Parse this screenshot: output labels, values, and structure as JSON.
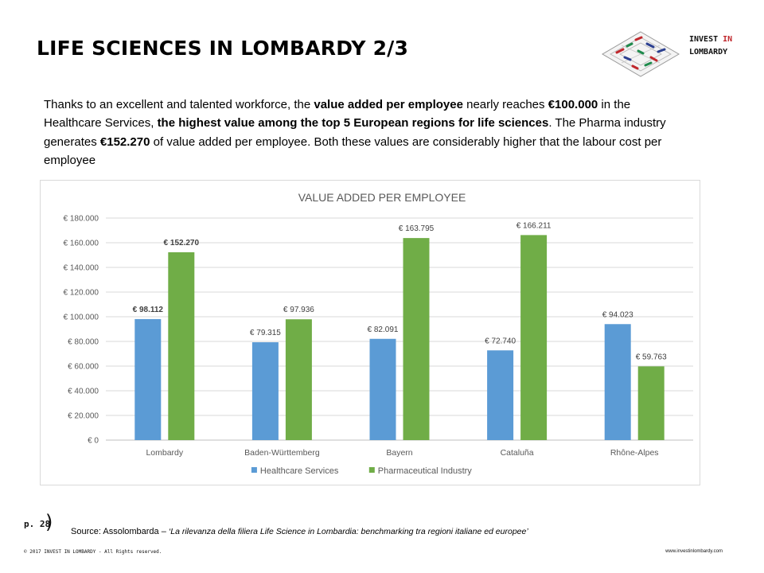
{
  "header": {
    "title": "LIFE SCIENCES IN LOMBARDY 2/3",
    "logo": {
      "line1_a": "INVEST ",
      "line1_b": "IN",
      "line2": "LOMBARDY",
      "accent_color": "#c0282d"
    }
  },
  "intro": {
    "p1": "Thanks to an excellent and talented workforce,  the ",
    "b1": "value added per employee",
    "p2": " nearly reaches ",
    "b2": "€100.000",
    "p3": " in the Healthcare Services, ",
    "b3": "the highest value among the top 5 European regions for life sciences",
    "p4": ". The Pharma industry generates ",
    "b4": "€152.270",
    "p5": " of value added per employee. Both these values are considerably higher that the labour cost per employee"
  },
  "chart_data": {
    "type": "bar",
    "title": "VALUE ADDED PER EMPLOYEE",
    "categories": [
      "Lombardy",
      "Baden-Württemberg",
      "Bayern",
      "Cataluña",
      "Rhône-Alpes"
    ],
    "series": [
      {
        "name": "Healthcare Services",
        "color": "#5b9bd5",
        "values": [
          98112,
          79315,
          82091,
          72740,
          94023
        ]
      },
      {
        "name": "Pharmaceutical Industry",
        "color": "#70ad47",
        "values": [
          152270,
          97936,
          163795,
          166211,
          59763
        ]
      }
    ],
    "data_labels": [
      [
        "€ 98.112",
        "€ 79.315",
        "€ 82.091",
        "€ 72.740",
        "€ 94.023"
      ],
      [
        "€ 152.270",
        "€ 97.936",
        "€ 163.795",
        "€ 166.211",
        "€ 59.763"
      ]
    ],
    "bold_labels_category": "Lombardy",
    "yticks": [
      0,
      20000,
      40000,
      60000,
      80000,
      100000,
      120000,
      140000,
      160000,
      180000
    ],
    "ytick_labels": [
      "€ 0",
      "€ 20.000",
      "€ 40.000",
      "€ 60.000",
      "€ 80.000",
      "€ 100.000",
      "€ 120.000",
      "€ 140.000",
      "€ 160.000",
      "€ 180.000"
    ],
    "ylim": [
      0,
      180000
    ],
    "xlabel": "",
    "ylabel": "",
    "grid": true,
    "legend": "bottom"
  },
  "footer": {
    "page": "p. 28",
    "paren": ")",
    "source_prefix": "Source: Assolombarda – ",
    "source_title": "‘La rilevanza della filiera Life Science in Lombardia: benchmarking tra regioni italiane ed europee’",
    "copyright": "© 2017 INVEST IN LOMBARDY - All Rights reserved.",
    "url": "www.investinlombardy.com"
  }
}
